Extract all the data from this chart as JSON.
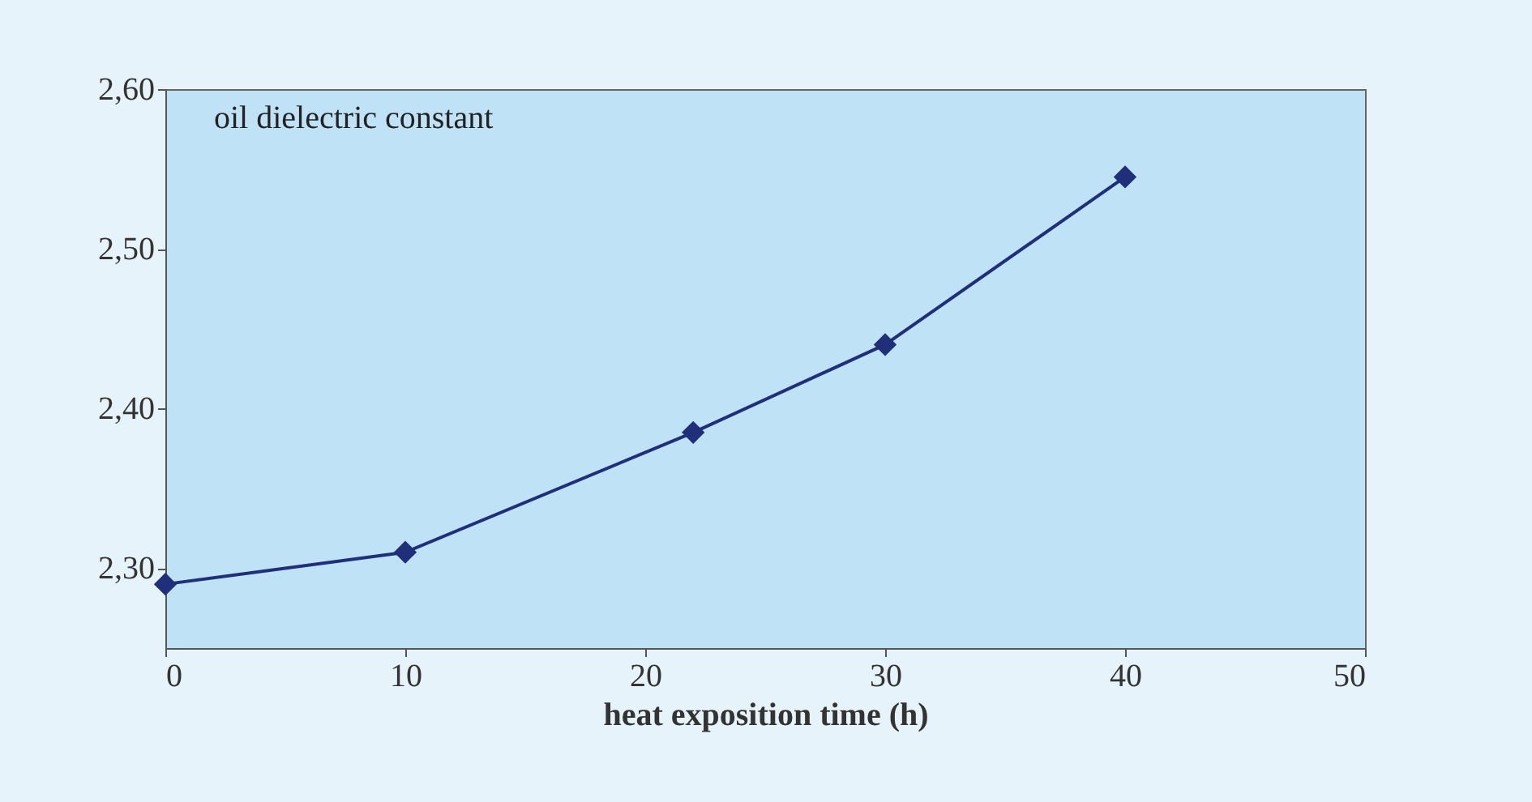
{
  "chart_data": {
    "type": "line",
    "xlabel": "heat exposition time (h)",
    "annotations": [
      "oil dielectric constant"
    ],
    "x": [
      0,
      10,
      22,
      30,
      40
    ],
    "series": [
      {
        "color": "#1f2f7a",
        "values": [
          2.29,
          2.31,
          2.385,
          2.44,
          2.545
        ]
      }
    ],
    "xlim": [
      0,
      50
    ],
    "xticks": [
      0,
      10,
      20,
      30,
      40,
      50
    ],
    "ylim": [
      2.25,
      2.6
    ],
    "yticks": [
      {
        "value": 2.3,
        "label": "2,30"
      },
      {
        "value": 2.4,
        "label": "2,40"
      },
      {
        "value": 2.5,
        "label": "2,50"
      },
      {
        "value": 2.6,
        "label": "2,60"
      }
    ],
    "grid": false,
    "marker": "diamond",
    "line_style": "solid"
  }
}
